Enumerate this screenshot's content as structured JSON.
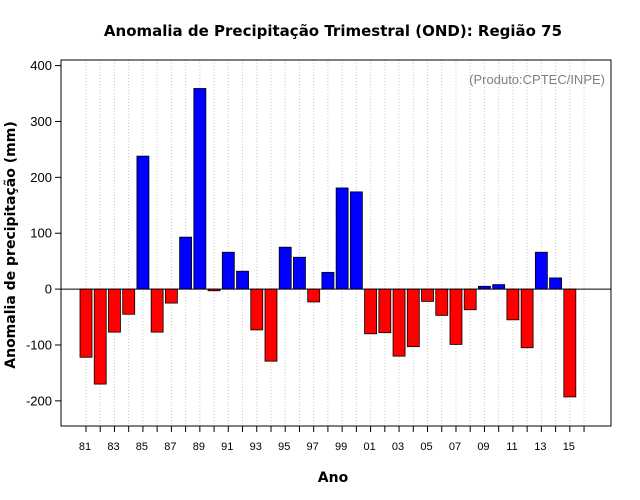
{
  "chart_data": {
    "type": "bar",
    "title": "Anomalia de Precipitação Trimestral (OND): Região 75",
    "xlabel": "Ano",
    "ylabel": "Anomalia de precipitação (mm)",
    "credit": "(Produto:CPTEC/INPE)",
    "ylim": [
      -245,
      410
    ],
    "yticks": [
      -200,
      -100,
      0,
      100,
      200,
      300,
      400
    ],
    "grid": "vertical-dotted",
    "colors": {
      "positive": "#0000ff",
      "negative": "#ff0000",
      "grid": "#c8c8c8",
      "axis": "#000000"
    },
    "categories": [
      "81",
      "82",
      "83",
      "84",
      "85",
      "86",
      "87",
      "88",
      "89",
      "90",
      "91",
      "92",
      "93",
      "94",
      "95",
      "96",
      "97",
      "98",
      "99",
      "00",
      "01",
      "02",
      "03",
      "04",
      "05",
      "06",
      "07",
      "08",
      "09",
      "10",
      "11",
      "12",
      "13",
      "14",
      "15"
    ],
    "tick_labels": [
      "81",
      "83",
      "85",
      "87",
      "89",
      "91",
      "93",
      "95",
      "97",
      "99",
      "01",
      "03",
      "05",
      "07",
      "09",
      "11",
      "13",
      "15"
    ],
    "values": [
      -122,
      -170,
      -77,
      -45,
      238,
      -77,
      -25,
      93,
      359,
      -3,
      66,
      32,
      -73,
      -129,
      75,
      57,
      -23,
      30,
      181,
      174,
      -80,
      -78,
      -120,
      -103,
      -22,
      -47,
      -99,
      -37,
      5,
      8,
      -55,
      -105,
      66,
      20,
      -193
    ]
  }
}
